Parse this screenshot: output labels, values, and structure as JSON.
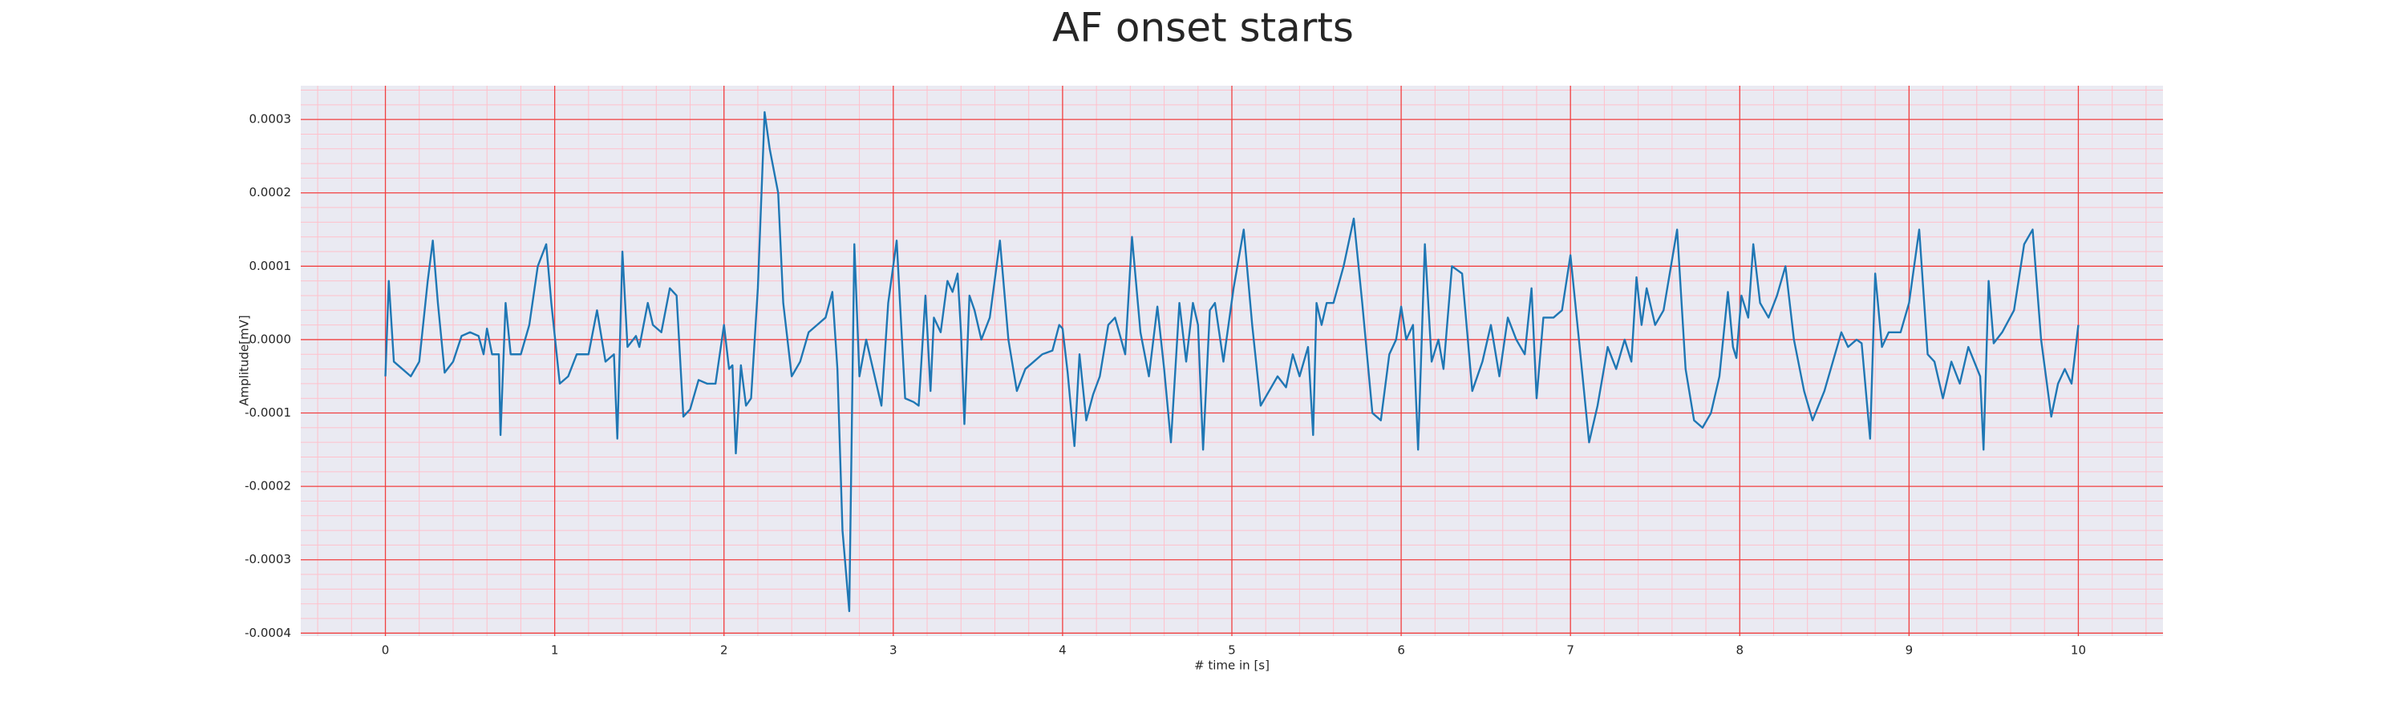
{
  "chart_data": {
    "type": "line",
    "title": "AF onset starts",
    "xlabel": "# time in [s]",
    "ylabel": "Amplitude[mV]",
    "color": "#1f77b4",
    "grid": true,
    "minor_grid": true,
    "xlim": [
      -0.5,
      10.5
    ],
    "ylim": [
      -0.000404,
      0.000346
    ],
    "xticks": [
      0,
      1,
      2,
      3,
      4,
      5,
      6,
      7,
      8,
      9,
      10
    ],
    "yticks": [
      {
        "value": -0.0004,
        "label": "-0.0004"
      },
      {
        "value": -0.0003,
        "label": "-0.0003"
      },
      {
        "value": -0.0002,
        "label": "-0.0002"
      },
      {
        "value": -0.0001,
        "label": "-0.0001"
      },
      {
        "value": 0,
        "label": "0.0000"
      },
      {
        "value": 0.0001,
        "label": "0.0001"
      },
      {
        "value": 0.0002,
        "label": "0.0002"
      },
      {
        "value": 0.0003,
        "label": "0.0003"
      }
    ],
    "x": [
      0,
      0.02,
      0.05,
      0.1,
      0.15,
      0.2,
      0.25,
      0.28,
      0.31,
      0.35,
      0.4,
      0.45,
      0.5,
      0.55,
      0.58,
      0.6,
      0.63,
      0.67,
      0.68,
      0.71,
      0.74,
      0.8,
      0.85,
      0.9,
      0.95,
      0.98,
      1.03,
      1.08,
      1.13,
      1.2,
      1.25,
      1.3,
      1.35,
      1.37,
      1.4,
      1.43,
      1.48,
      1.5,
      1.55,
      1.58,
      1.63,
      1.68,
      1.72,
      1.76,
      1.8,
      1.85,
      1.9,
      1.95,
      2.0,
      2.03,
      2.05,
      2.07,
      2.1,
      2.13,
      2.16,
      2.2,
      2.24,
      2.27,
      2.32,
      2.35,
      2.4,
      2.45,
      2.5,
      2.55,
      2.6,
      2.64,
      2.67,
      2.7,
      2.74,
      2.77,
      2.8,
      2.84,
      2.9,
      2.93,
      2.97,
      3.02,
      3.07,
      3.12,
      3.15,
      3.19,
      3.22,
      3.24,
      3.28,
      3.32,
      3.35,
      3.38,
      3.4,
      3.42,
      3.45,
      3.48,
      3.52,
      3.57,
      3.63,
      3.68,
      3.73,
      3.78,
      3.83,
      3.88,
      3.94,
      3.98,
      4.0,
      4.03,
      4.07,
      4.1,
      4.14,
      4.18,
      4.22,
      4.27,
      4.31,
      4.37,
      4.41,
      4.46,
      4.51,
      4.56,
      4.6,
      4.64,
      4.69,
      4.73,
      4.77,
      4.8,
      4.83,
      4.87,
      4.9,
      4.95,
      5.01,
      5.07,
      5.12,
      5.17,
      5.22,
      5.27,
      5.32,
      5.36,
      5.4,
      5.45,
      5.48,
      5.5,
      5.53,
      5.56,
      5.6,
      5.66,
      5.72,
      5.77,
      5.83,
      5.88,
      5.93,
      5.97,
      6.0,
      6.03,
      6.07,
      6.1,
      6.14,
      6.18,
      6.22,
      6.25,
      6.3,
      6.36,
      6.42,
      6.48,
      6.53,
      6.58,
      6.63,
      6.68,
      6.73,
      6.77,
      6.8,
      6.84,
      6.9,
      6.95,
      7.0,
      7.05,
      7.11,
      7.16,
      7.22,
      7.27,
      7.32,
      7.36,
      7.39,
      7.42,
      7.45,
      7.5,
      7.55,
      7.63,
      7.68,
      7.73,
      7.78,
      7.83,
      7.88,
      7.93,
      7.96,
      7.98,
      8.01,
      8.05,
      8.08,
      8.12,
      8.17,
      8.22,
      8.27,
      8.32,
      8.38,
      8.43,
      8.5,
      8.55,
      8.6,
      8.64,
      8.69,
      8.72,
      8.77,
      8.8,
      8.84,
      8.88,
      8.95,
      9.0,
      9.06,
      9.11,
      9.15,
      9.2,
      9.25,
      9.3,
      9.35,
      9.42,
      9.44,
      9.47,
      9.5,
      9.55,
      9.62,
      9.68,
      9.73,
      9.78,
      9.84,
      9.88,
      9.92,
      9.96,
      10.0
    ],
    "values": [
      -5e-05,
      8e-05,
      -3e-05,
      -4e-05,
      -5e-05,
      -3e-05,
      8e-05,
      0.000135,
      5e-05,
      -4.5e-05,
      -3e-05,
      5e-06,
      1e-05,
      5e-06,
      -2e-05,
      1.5e-05,
      -2e-05,
      -2e-05,
      -0.00013,
      5e-05,
      -2e-05,
      -2e-05,
      2e-05,
      0.0001,
      0.00013,
      5e-05,
      -6e-05,
      -5e-05,
      -2e-05,
      -2e-05,
      4e-05,
      -3e-05,
      -2e-05,
      -0.000135,
      0.00012,
      -1e-05,
      5e-06,
      -1e-05,
      5e-05,
      2e-05,
      1e-05,
      7e-05,
      6e-05,
      -0.000105,
      -9.5e-05,
      -5.5e-05,
      -6e-05,
      -6e-05,
      2e-05,
      -4e-05,
      -3.5e-05,
      -0.000155,
      -3.5e-05,
      -9e-05,
      -8e-05,
      7e-05,
      0.00031,
      0.00026,
      0.0002,
      5e-05,
      -5e-05,
      -3e-05,
      1e-05,
      2e-05,
      3e-05,
      6.5e-05,
      -4e-05,
      -0.00026,
      -0.00037,
      0.00013,
      -5e-05,
      0,
      -6e-05,
      -9e-05,
      5e-05,
      0.000135,
      -8e-05,
      -8.5e-05,
      -9e-05,
      6e-05,
      -7e-05,
      3e-05,
      1e-05,
      8e-05,
      6.5e-05,
      9e-05,
      1e-05,
      -0.000115,
      6e-05,
      4e-05,
      0,
      3e-05,
      0.000135,
      0,
      -7e-05,
      -4e-05,
      -3e-05,
      -2e-05,
      -1.5e-05,
      2e-05,
      1.5e-05,
      -4.5e-05,
      -0.000145,
      -2e-05,
      -0.00011,
      -7.5e-05,
      -5e-05,
      2e-05,
      3e-05,
      -2e-05,
      0.00014,
      1e-05,
      -5e-05,
      4.5e-05,
      -4e-05,
      -0.00014,
      5e-05,
      -3e-05,
      5e-05,
      2e-05,
      -0.00015,
      4e-05,
      5e-05,
      -3e-05,
      7e-05,
      0.00015,
      2e-05,
      -9e-05,
      -7e-05,
      -5e-05,
      -6.5e-05,
      -2e-05,
      -5e-05,
      -1e-05,
      -0.00013,
      5e-05,
      2e-05,
      5e-05,
      5e-05,
      0.0001,
      0.000165,
      5e-05,
      -0.0001,
      -0.00011,
      -2e-05,
      0,
      4.5e-05,
      0,
      2e-05,
      -0.00015,
      0.00013,
      -3e-05,
      0,
      -4e-05,
      0.0001,
      9e-05,
      -7e-05,
      -3e-05,
      2e-05,
      -5e-05,
      3e-05,
      0,
      -2e-05,
      7e-05,
      -8e-05,
      3e-05,
      3e-05,
      4e-05,
      0.000115,
      0,
      -0.00014,
      -9e-05,
      -1e-05,
      -4e-05,
      0,
      -3e-05,
      8.5e-05,
      2e-05,
      7e-05,
      2e-05,
      4e-05,
      0.00015,
      -4e-05,
      -0.00011,
      -0.00012,
      -0.0001,
      -5e-05,
      6.5e-05,
      -1e-05,
      -2.5e-05,
      6e-05,
      3e-05,
      0.00013,
      5e-05,
      3e-05,
      6e-05,
      0.0001,
      0,
      -7e-05,
      -0.00011,
      -7e-05,
      -3e-05,
      1e-05,
      -1e-05,
      0,
      -5e-06,
      -0.000135,
      9e-05,
      -1e-05,
      1e-05,
      1e-05,
      5e-05,
      0.00015,
      -2e-05,
      -3e-05,
      -8e-05,
      -3e-05,
      -6e-05,
      -1e-05,
      -5e-05,
      -0.00015,
      8e-05,
      -5e-06,
      1e-05,
      4e-05,
      0.00013,
      0.00015,
      0,
      -0.000105,
      -6e-05,
      -4e-05,
      -6e-05,
      2e-05
    ]
  }
}
